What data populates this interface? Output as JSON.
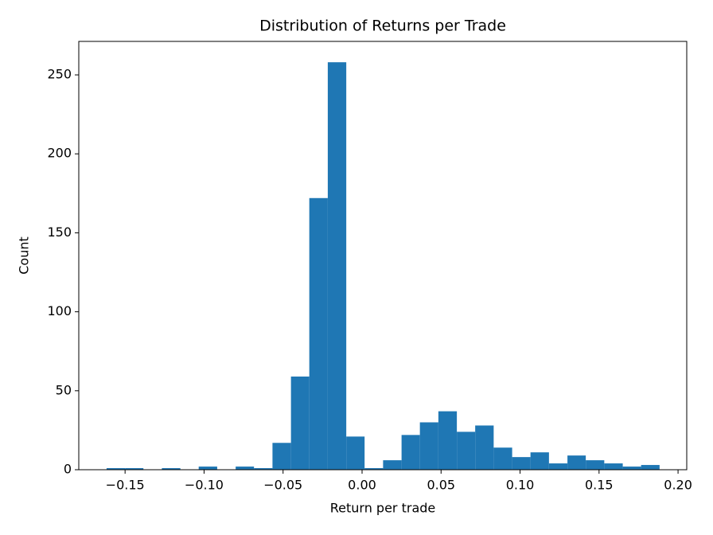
{
  "chart_data": {
    "type": "histogram",
    "title": "Distribution of Returns per Trade",
    "x_label": "Return per trade",
    "y_label": "Count",
    "color": "#1f77b4",
    "bins": [
      -0.1617,
      -0.15,
      -0.1384,
      -0.1267,
      -0.115,
      -0.1034,
      -0.0917,
      -0.08,
      -0.0684,
      -0.0567,
      -0.045,
      -0.0334,
      -0.0217,
      -0.01,
      0.0016,
      0.0133,
      0.025,
      0.0366,
      0.0483,
      0.06,
      0.0716,
      0.0833,
      0.095,
      0.1066,
      0.1183,
      0.13,
      0.1416,
      0.1533,
      0.165,
      0.1766,
      0.1883
    ],
    "counts": [
      1,
      1,
      0,
      1,
      0,
      2,
      0,
      2,
      1,
      17,
      59,
      172,
      258,
      21,
      1,
      6,
      22,
      30,
      37,
      24,
      28,
      14,
      8,
      11,
      4,
      9,
      6,
      4,
      2,
      3
    ],
    "xlim": [
      -0.1793,
      0.2055
    ],
    "ylim": [
      0,
      271.2
    ],
    "xticks": [
      {
        "value": -0.15,
        "label": "−0.15"
      },
      {
        "value": -0.1,
        "label": "−0.10"
      },
      {
        "value": -0.05,
        "label": "−0.05"
      },
      {
        "value": 0.0,
        "label": "0.00"
      },
      {
        "value": 0.05,
        "label": "0.05"
      },
      {
        "value": 0.1,
        "label": "0.10"
      },
      {
        "value": 0.15,
        "label": "0.15"
      },
      {
        "value": 0.2,
        "label": "0.20"
      }
    ],
    "yticks": [
      0,
      50,
      100,
      150,
      200,
      250
    ]
  }
}
